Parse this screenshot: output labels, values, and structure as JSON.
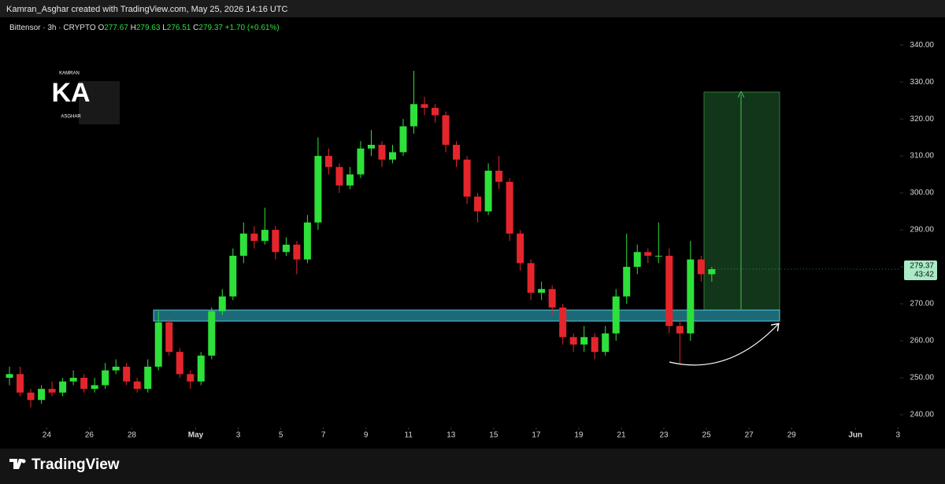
{
  "header": "Kamran_Asghar created with TradingView.com, May 25, 2026 14:16 UTC",
  "footer": "TradingView",
  "watermark": {
    "big": "KA",
    "top": "KAMRAN",
    "bottom": "ASGHAR"
  },
  "chart_data": {
    "type": "candlestick",
    "title": "Bittensor · 3h · CRYPTO",
    "ohlc": [
      {
        "label": "O",
        "value": "277.67"
      },
      {
        "label": "H",
        "value": "279.63"
      },
      {
        "label": "L",
        "value": "276.51"
      },
      {
        "label": "C",
        "value": "279.37"
      }
    ],
    "change": "+1.70 (+0.61%)",
    "countdown": "43:42",
    "up_color": "#2ee03a",
    "down_color": "#e4262c",
    "x": [
      22.25,
      22.75,
      23.25,
      23.75,
      24.25,
      24.75,
      25.25,
      25.75,
      26.25,
      26.75,
      27.25,
      27.75,
      28.25,
      28.75,
      29.25,
      29.75,
      30.25,
      30.75,
      31.25,
      31.75,
      32.25,
      32.75,
      33.25,
      33.75,
      34.25,
      34.75,
      35.25,
      35.75,
      36.25,
      36.75,
      37.25,
      37.75,
      38.25,
      38.75,
      39.25,
      39.75,
      40.25,
      40.75,
      41.25,
      41.75,
      42.25,
      42.75,
      43.25,
      43.75,
      44.25,
      44.75,
      45.25,
      45.75,
      46.25,
      46.75,
      47.25,
      47.75,
      48.25,
      48.75,
      49.25,
      49.75,
      50.25,
      50.75,
      51.25,
      51.75,
      52.25,
      52.75,
      53.25,
      53.75,
      54.25,
      54.75,
      55.25
    ],
    "open": [
      250,
      251,
      246,
      244,
      247,
      246,
      249,
      250,
      247,
      248,
      252,
      253,
      249,
      247,
      253,
      265,
      257,
      251,
      249,
      256,
      268,
      272,
      283,
      289,
      287,
      290,
      284,
      286,
      282,
      292,
      310,
      307,
      302,
      305,
      312,
      313,
      309,
      311,
      318,
      324,
      323,
      321,
      313,
      309,
      299,
      295,
      306,
      303,
      289,
      281,
      273,
      274,
      269,
      261,
      259,
      261,
      257,
      262,
      272,
      280,
      284,
      283,
      283,
      264,
      262,
      282,
      278
    ],
    "high": [
      253,
      253,
      247,
      248,
      249,
      250,
      252,
      251,
      250,
      254,
      255,
      254,
      250,
      255,
      268,
      266,
      258,
      252,
      257,
      269,
      274,
      285,
      292,
      291,
      296,
      291,
      288,
      287,
      294,
      315,
      312,
      308,
      307,
      314,
      317,
      314,
      313,
      320,
      333,
      326,
      324,
      322,
      314,
      310,
      300,
      308,
      310,
      304,
      290,
      282,
      276,
      275,
      270,
      262,
      264,
      262,
      264,
      274,
      289,
      286,
      285,
      292,
      285,
      266,
      287,
      283,
      280
    ],
    "low": [
      248,
      245,
      242,
      243,
      245,
      245,
      248,
      246,
      246,
      247,
      251,
      248,
      246,
      246,
      252,
      256,
      250,
      247,
      248,
      255,
      267,
      271,
      281,
      285,
      286,
      282,
      283,
      278,
      281,
      290,
      305,
      300,
      301,
      304,
      310,
      307,
      308,
      310,
      316,
      321,
      319,
      311,
      307,
      297,
      292,
      294,
      301,
      287,
      279,
      271,
      271,
      267,
      259,
      257,
      257,
      255,
      256,
      260,
      270,
      278,
      281,
      281,
      262,
      254,
      260,
      276,
      276
    ],
    "close": [
      251,
      246,
      244,
      247,
      246,
      249,
      250,
      247,
      248,
      252,
      253,
      249,
      247,
      253,
      265,
      257,
      251,
      249,
      256,
      268,
      272,
      283,
      289,
      287,
      290,
      284,
      286,
      282,
      292,
      310,
      307,
      302,
      305,
      312,
      313,
      309,
      311,
      318,
      324,
      323,
      321,
      313,
      309,
      299,
      295,
      306,
      303,
      289,
      281,
      273,
      274,
      269,
      261,
      259,
      261,
      257,
      262,
      272,
      280,
      284,
      283,
      283,
      264,
      262,
      282,
      278,
      279.37
    ],
    "xlim": [
      22.1,
      64.1
    ],
    "ylim": [
      236.6,
      346.2
    ],
    "xticks": [
      24,
      26,
      28,
      {
        "value": 31,
        "label": "May"
      },
      {
        "value": 33,
        "label": "3"
      },
      {
        "value": 35,
        "label": "5"
      },
      {
        "value": 37,
        "label": "7"
      },
      {
        "value": 39,
        "label": "9"
      },
      {
        "value": 41,
        "label": "11"
      },
      {
        "value": 43,
        "label": "13"
      },
      {
        "value": 45,
        "label": "15"
      },
      {
        "value": 47,
        "label": "17"
      },
      {
        "value": 49,
        "label": "19"
      },
      {
        "value": 51,
        "label": "21"
      },
      {
        "value": 53,
        "label": "23"
      },
      {
        "value": 55,
        "label": "25"
      },
      {
        "value": 57,
        "label": "27"
      },
      {
        "value": 59,
        "label": "29"
      },
      {
        "value": 62,
        "label": "Jun"
      },
      {
        "value": 64,
        "label": "3"
      }
    ],
    "yticks": [
      {
        "value": 240,
        "label": "240.00"
      },
      {
        "value": 250,
        "label": "250.00"
      },
      {
        "value": 260,
        "label": "260.00"
      },
      {
        "value": 270,
        "label": "270.00"
      },
      {
        "value": 280,
        "label": "280.00"
      },
      {
        "value": 290,
        "label": "290.00"
      },
      {
        "value": 300,
        "label": "300.00"
      },
      {
        "value": 310,
        "label": "310.00"
      },
      {
        "value": 320,
        "label": "320.00"
      },
      {
        "value": 330,
        "label": "330.00"
      },
      {
        "value": 340,
        "label": "340.00"
      }
    ],
    "grid": false
  }
}
